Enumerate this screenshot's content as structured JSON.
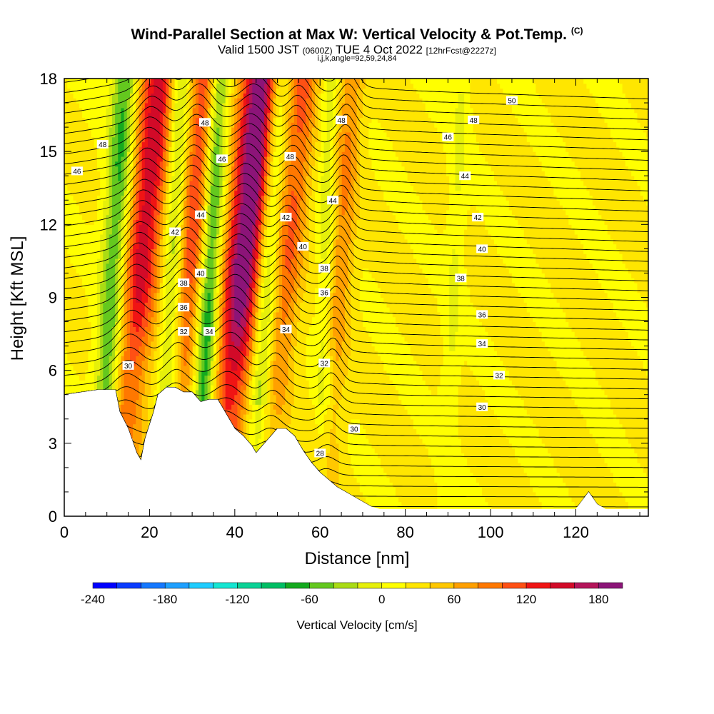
{
  "header": {
    "title": "Wind-Parallel Section at Max W: Vertical Velocity & Pot.Temp.",
    "copyright": "(C)",
    "valid_prefix": "Valid 1500 JST",
    "valid_utc": "(0600Z)",
    "valid_date": "TUE 4 Oct 2022",
    "forecast": "[12hrFcst@2227z]",
    "params": "i,j,k,angle=92,59,24,84"
  },
  "chart_data": {
    "type": "heatmap",
    "xlabel": "Distance [nm]",
    "ylabel": "Height [Kft MSL]",
    "xlim": [
      0,
      137
    ],
    "ylim": [
      0,
      18
    ],
    "x_ticks": [
      "0",
      "20",
      "40",
      "60",
      "80",
      "100",
      "120"
    ],
    "y_ticks": [
      "0",
      "3",
      "6",
      "9",
      "12",
      "15",
      "18"
    ],
    "colorbar": {
      "label": "Vertical Velocity [cm/s]",
      "range": [
        -240,
        200
      ],
      "step": 20,
      "tick_labels": [
        "-240",
        "-180",
        "-120",
        "-60",
        "0",
        "60",
        "120",
        "180"
      ],
      "colors": [
        "#0000ff",
        "#0a3cff",
        "#1478ff",
        "#1ea0ff",
        "#1ecdff",
        "#14e6d2",
        "#0ad296",
        "#00be64",
        "#14aa1e",
        "#64c81e",
        "#aadc14",
        "#e6f00a",
        "#ffff00",
        "#ffe600",
        "#ffc800",
        "#ffa000",
        "#ff7800",
        "#ff5014",
        "#f01414",
        "#d20a28",
        "#b4145a",
        "#8c1478"
      ]
    },
    "updraft_bands": [
      {
        "x_bottom": 12,
        "x_top": 22,
        "width": 4.5,
        "w_max": 130
      },
      {
        "x_bottom": 24,
        "x_top": 33,
        "width": 4.0,
        "w_max": 100
      },
      {
        "x_bottom": 36,
        "x_top": 46,
        "width": 4.5,
        "w_max": 190
      },
      {
        "x_bottom": 47,
        "x_top": 56,
        "width": 3.5,
        "w_max": 80
      },
      {
        "x_bottom": 61,
        "x_top": 67,
        "width": 3.0,
        "w_max": 60
      }
    ],
    "downdraft_bands": [
      {
        "x_bottom": 8,
        "x_top": 14,
        "width": 3.0,
        "w_min": -90
      },
      {
        "x_bottom": 23,
        "x_top": 27,
        "width": 2.5,
        "w_min": -80
      },
      {
        "x_bottom": 31,
        "x_top": 36,
        "width": 2.5,
        "w_min": -110
      },
      {
        "x_bottom": 44,
        "x_top": 50,
        "width": 2.5,
        "w_min": -70
      },
      {
        "x_bottom": 60,
        "x_top": 62,
        "width": 2.0,
        "w_min": -40
      },
      {
        "x_bottom": 89,
        "x_top": 93,
        "width": 2.0,
        "w_min": -25
      }
    ],
    "terrain": {
      "x": [
        0,
        8,
        12,
        13,
        15,
        17,
        18,
        19,
        21,
        22,
        24,
        26,
        28,
        30,
        32,
        34,
        36,
        38,
        40,
        42,
        44,
        45,
        46,
        48,
        50,
        52,
        54,
        56,
        58,
        60,
        62,
        64,
        66,
        68,
        70,
        72,
        74,
        76,
        78,
        80,
        100,
        120,
        123,
        125,
        127,
        129,
        137
      ],
      "height": [
        5,
        5.2,
        5.2,
        4.3,
        3.6,
        2.6,
        2.3,
        3.2,
        4.3,
        5.0,
        5.3,
        5.3,
        5.1,
        5.1,
        4.7,
        4.8,
        4.8,
        4.2,
        3.6,
        3.3,
        2.9,
        2.6,
        2.8,
        3.2,
        3.6,
        3.6,
        3.3,
        2.7,
        2.2,
        1.8,
        1.5,
        1.2,
        1.0,
        0.8,
        0.6,
        0.4,
        0.3,
        0.3,
        0.3,
        0.3,
        0.3,
        0.3,
        1.0,
        0.5,
        0.3,
        0.3,
        0.3
      ]
    },
    "theta_contour_labels": [
      {
        "value": "28",
        "x": 60,
        "y": 2.6
      },
      {
        "value": "30",
        "x": 68,
        "y": 3.6
      },
      {
        "value": "30",
        "x": 98,
        "y": 4.5
      },
      {
        "value": "30",
        "x": 15,
        "y": 6.2
      },
      {
        "value": "32",
        "x": 102,
        "y": 5.8
      },
      {
        "value": "32",
        "x": 61,
        "y": 6.3
      },
      {
        "value": "32",
        "x": 28,
        "y": 7.6
      },
      {
        "value": "34",
        "x": 34,
        "y": 7.6
      },
      {
        "value": "34",
        "x": 52,
        "y": 7.7
      },
      {
        "value": "34",
        "x": 98,
        "y": 7.1
      },
      {
        "value": "36",
        "x": 98,
        "y": 8.3
      },
      {
        "value": "36",
        "x": 28,
        "y": 8.6
      },
      {
        "value": "36",
        "x": 61,
        "y": 9.2
      },
      {
        "value": "38",
        "x": 28,
        "y": 9.6
      },
      {
        "value": "38",
        "x": 61,
        "y": 10.2
      },
      {
        "value": "38",
        "x": 93,
        "y": 9.8
      },
      {
        "value": "40",
        "x": 32,
        "y": 10.0
      },
      {
        "value": "40",
        "x": 56,
        "y": 11.1
      },
      {
        "value": "40",
        "x": 98,
        "y": 11.0
      },
      {
        "value": "42",
        "x": 26,
        "y": 11.7
      },
      {
        "value": "42",
        "x": 52,
        "y": 12.3
      },
      {
        "value": "42",
        "x": 97,
        "y": 12.3
      },
      {
        "value": "44",
        "x": 32,
        "y": 12.4
      },
      {
        "value": "44",
        "x": 63,
        "y": 13.0
      },
      {
        "value": "44",
        "x": 94,
        "y": 14.0
      },
      {
        "value": "46",
        "x": 3,
        "y": 14.2
      },
      {
        "value": "46",
        "x": 37,
        "y": 14.7
      },
      {
        "value": "46",
        "x": 90,
        "y": 15.6
      },
      {
        "value": "48",
        "x": 9,
        "y": 15.3
      },
      {
        "value": "48",
        "x": 53,
        "y": 14.8
      },
      {
        "value": "48",
        "x": 96,
        "y": 16.3
      },
      {
        "value": "48",
        "x": 33,
        "y": 16.2
      },
      {
        "value": "48",
        "x": 65,
        "y": 16.3
      },
      {
        "value": "50",
        "x": 105,
        "y": 17.1
      }
    ]
  }
}
